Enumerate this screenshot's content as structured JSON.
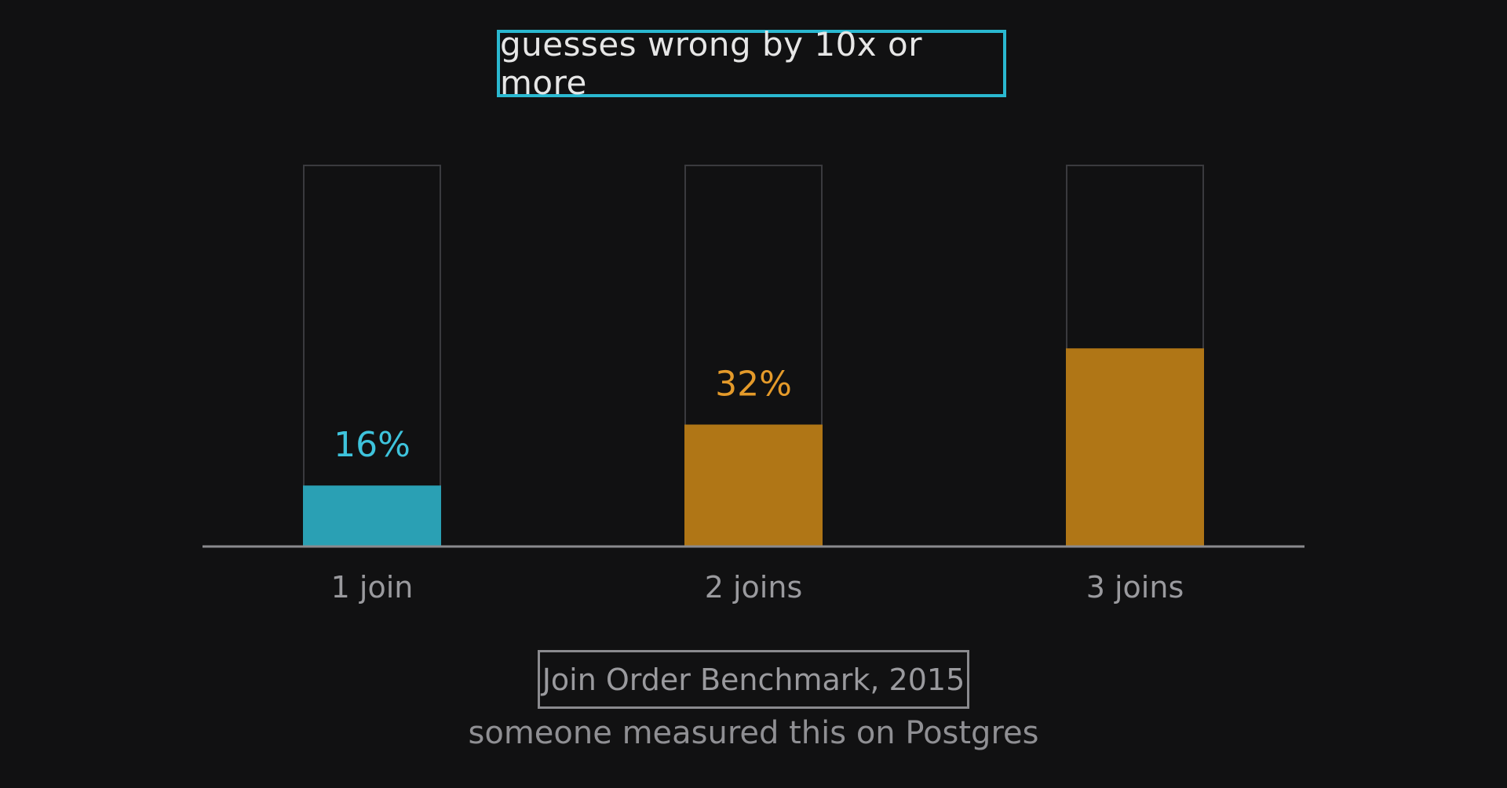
{
  "title": "guesses wrong by 10x or more",
  "source_label": "Join Order Benchmark, 2015",
  "note": "someone measured this on Postgres",
  "colors": {
    "background": "#111112",
    "accent_cyan": "#2aa0b4",
    "label_cyan": "#3ec3dc",
    "accent_orange": "#b07616",
    "label_orange": "#e49a2a",
    "track_border": "#3a3a3e",
    "axis": "#8a8a8e",
    "tick_text": "#9a9a9e"
  },
  "chart_data": {
    "type": "bar",
    "categories": [
      "1 join",
      "2 joins",
      "3 joins"
    ],
    "values": [
      16,
      32,
      52
    ],
    "data_labels": [
      "16%",
      "32%",
      ""
    ],
    "ylim": [
      0,
      100
    ],
    "grid": false,
    "bar_colors": [
      "#2aa0b4",
      "#b07616",
      "#b07616"
    ],
    "label_colors": [
      "#3ec3dc",
      "#e49a2a",
      "#e49a2a"
    ]
  }
}
